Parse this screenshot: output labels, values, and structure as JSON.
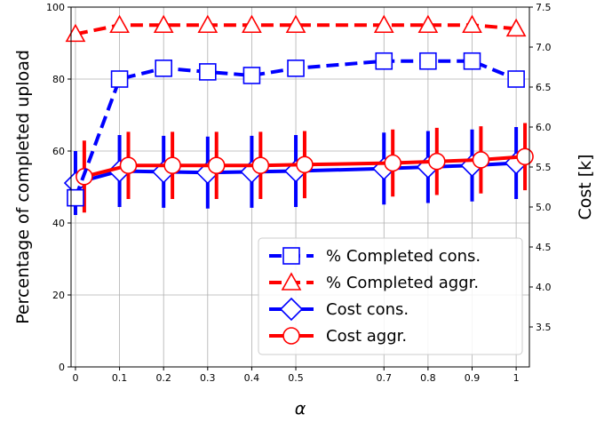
{
  "chart_data": {
    "type": "line",
    "xlabel": "α",
    "ylabel_left": "Percentage of completed upload",
    "ylabel_right": "Cost [k]",
    "x_ticks": [
      "0",
      "0.1",
      "0.2",
      "0.3",
      "0.4",
      "0.5",
      "0.7",
      "0.8",
      "0.9",
      "1"
    ],
    "y_left_ticks": [
      "0",
      "20",
      "40",
      "60",
      "80",
      "100"
    ],
    "y_right_ticks": [
      "3.5",
      "4.0",
      "4.5",
      "5.0",
      "5.5",
      "6.0",
      "6.5",
      "7.0",
      "7.5"
    ],
    "xlim": [
      -0.01,
      1.03
    ],
    "ylim_left": [
      0,
      100
    ],
    "ylim_right": [
      3.0,
      7.5
    ],
    "grid": true,
    "legend_position": "lower-right",
    "series": [
      {
        "name": "% Completed cons.",
        "axis": "left",
        "color": "#0000ff",
        "marker": "square",
        "linestyle": "dashed",
        "x": [
          0,
          0.1,
          0.2,
          0.3,
          0.4,
          0.5,
          0.7,
          0.8,
          0.9,
          1
        ],
        "y": [
          47,
          80,
          83,
          82,
          81,
          83,
          85,
          85,
          85,
          80
        ]
      },
      {
        "name": "% Completed aggr.",
        "axis": "left",
        "color": "#ff0000",
        "marker": "triangle",
        "linestyle": "dashed",
        "x": [
          0,
          0.1,
          0.2,
          0.3,
          0.4,
          0.5,
          0.7,
          0.8,
          0.9,
          1
        ],
        "y": [
          92.5,
          95,
          95,
          95,
          95,
          95,
          95,
          95,
          95,
          94
        ]
      },
      {
        "name": "Cost cons.",
        "axis": "right",
        "color": "#0000ff",
        "marker": "diamond",
        "linestyle": "solid",
        "x": [
          0,
          0.1,
          0.2,
          0.3,
          0.4,
          0.5,
          0.7,
          0.8,
          0.9,
          1
        ],
        "y": [
          5.3,
          5.45,
          5.44,
          5.43,
          5.44,
          5.45,
          5.48,
          5.5,
          5.52,
          5.55
        ],
        "err": [
          0.4,
          0.45,
          0.45,
          0.45,
          0.45,
          0.45,
          0.45,
          0.45,
          0.45,
          0.45
        ]
      },
      {
        "name": "Cost aggr.",
        "axis": "right",
        "color": "#ff0000",
        "marker": "circle",
        "linestyle": "solid",
        "x": [
          0.02,
          0.12,
          0.22,
          0.32,
          0.42,
          0.52,
          0.72,
          0.82,
          0.92,
          1.02
        ],
        "y": [
          5.38,
          5.52,
          5.52,
          5.52,
          5.52,
          5.53,
          5.55,
          5.57,
          5.59,
          5.63
        ],
        "err": [
          0.45,
          0.42,
          0.42,
          0.42,
          0.42,
          0.42,
          0.42,
          0.42,
          0.42,
          0.42
        ]
      }
    ]
  }
}
